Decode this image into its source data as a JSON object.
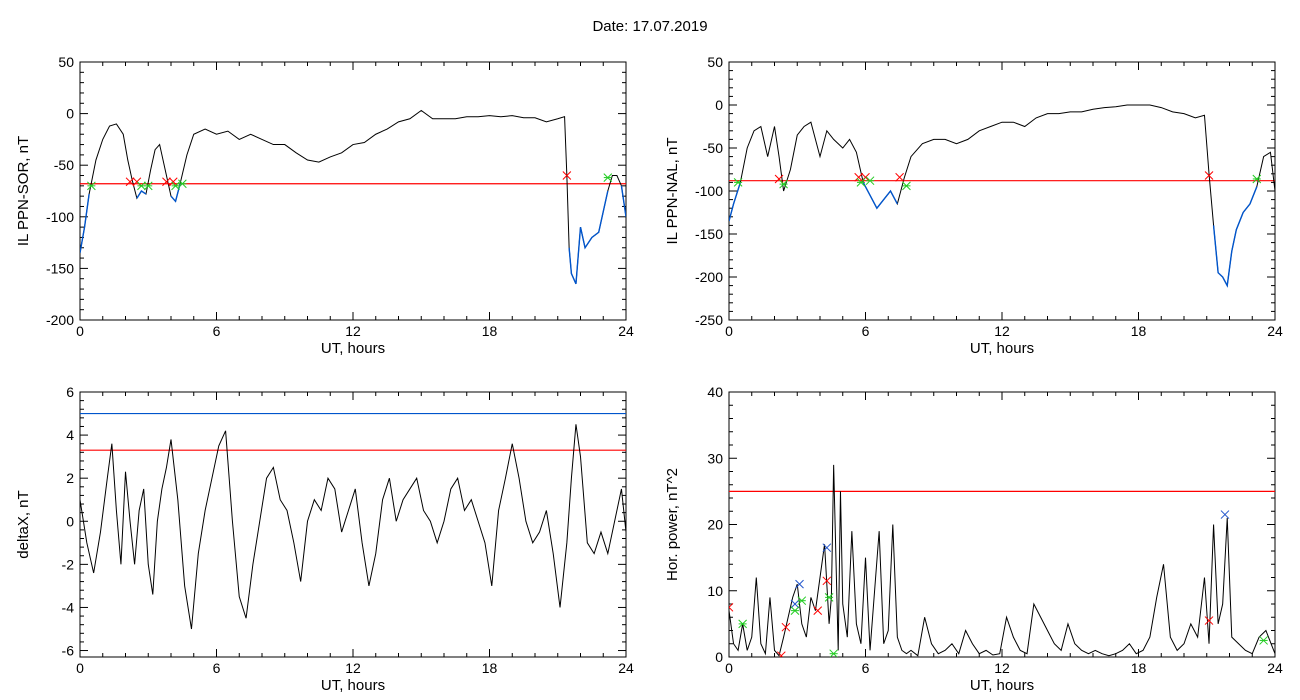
{
  "figure": {
    "title": "Date:  17.07.2019"
  },
  "chart_data": [
    {
      "id": "ppn-sor",
      "type": "line",
      "xlabel": "UT, hours",
      "ylabel": "IL PPN-SOR, nT",
      "xlim": [
        0,
        24
      ],
      "ylim": [
        -200,
        50
      ],
      "xticks": [
        0,
        6,
        12,
        18,
        24
      ],
      "yticks": [
        -200,
        -150,
        -100,
        -50,
        0,
        50
      ],
      "threshold": {
        "value": -68,
        "color": "#ff0000"
      },
      "line_color": "#000000",
      "highlight_color": "#0055cc",
      "series": [
        {
          "x": [
            0,
            0.2,
            0.4,
            0.7,
            1.0,
            1.3,
            1.6,
            1.9,
            2.1,
            2.3,
            2.5,
            2.7,
            2.9,
            3.1,
            3.3,
            3.5,
            3.8,
            4.0,
            4.2,
            4.4,
            4.7,
            5.0,
            5.5,
            6.0,
            6.5,
            7.0,
            7.5,
            8.0,
            8.5,
            9.0,
            9.5,
            10.0,
            10.5,
            11.0,
            11.5,
            12.0,
            12.5,
            13.0,
            13.5,
            14.0,
            14.5,
            15.0,
            15.5,
            16.0,
            16.5,
            17.0,
            17.5,
            18.0,
            18.5,
            19.0,
            19.5,
            20.0,
            20.5,
            21.0,
            21.3,
            21.4,
            21.5,
            21.6,
            21.8,
            22.0,
            22.2,
            22.5,
            22.8,
            23.0,
            23.2,
            23.4,
            23.6,
            23.8,
            24.0
          ],
          "y": [
            -135,
            -110,
            -78,
            -45,
            -25,
            -12,
            -10,
            -20,
            -45,
            -65,
            -82,
            -75,
            -78,
            -55,
            -35,
            -30,
            -60,
            -80,
            -85,
            -68,
            -40,
            -20,
            -15,
            -20,
            -17,
            -25,
            -20,
            -25,
            -30,
            -30,
            -38,
            -45,
            -47,
            -42,
            -38,
            -30,
            -28,
            -20,
            -15,
            -8,
            -5,
            3,
            -5,
            -5,
            -5,
            -3,
            -3,
            -2,
            -3,
            -2,
            -4,
            -4,
            -8,
            -5,
            -3,
            -60,
            -130,
            -155,
            -165,
            -110,
            -130,
            -120,
            -115,
            -95,
            -75,
            -60,
            -60,
            -70,
            -100
          ]
        }
      ],
      "markers_red": [
        {
          "x": 2.2,
          "y": -66
        },
        {
          "x": 2.5,
          "y": -66
        },
        {
          "x": 3.8,
          "y": -66
        },
        {
          "x": 4.1,
          "y": -66
        },
        {
          "x": 21.4,
          "y": -60
        }
      ],
      "markers_green": [
        {
          "x": 0.5,
          "y": -70
        },
        {
          "x": 2.7,
          "y": -70
        },
        {
          "x": 3.0,
          "y": -70
        },
        {
          "x": 4.2,
          "y": -70
        },
        {
          "x": 4.5,
          "y": -68
        },
        {
          "x": 23.2,
          "y": -62
        }
      ]
    },
    {
      "id": "ppn-nal",
      "type": "line",
      "xlabel": "UT, hours",
      "ylabel": "IL PPN-NAL, nT",
      "xlim": [
        0,
        24
      ],
      "ylim": [
        -250,
        50
      ],
      "xticks": [
        0,
        6,
        12,
        18,
        24
      ],
      "yticks": [
        -250,
        -200,
        -150,
        -100,
        -50,
        0,
        50
      ],
      "threshold": {
        "value": -88,
        "color": "#ff0000"
      },
      "line_color": "#000000",
      "highlight_color": "#0055cc",
      "series": [
        {
          "x": [
            0,
            0.2,
            0.5,
            0.8,
            1.1,
            1.4,
            1.7,
            2.0,
            2.2,
            2.4,
            2.7,
            3.0,
            3.3,
            3.6,
            4.0,
            4.3,
            4.6,
            5.0,
            5.3,
            5.6,
            5.9,
            6.2,
            6.5,
            6.8,
            7.1,
            7.4,
            7.7,
            8.0,
            8.5,
            9.0,
            9.5,
            10.0,
            10.5,
            11.0,
            11.5,
            12.0,
            12.5,
            13.0,
            13.5,
            14.0,
            14.5,
            15.0,
            15.5,
            16.0,
            16.5,
            17.0,
            17.5,
            18.0,
            18.5,
            19.0,
            19.5,
            20.0,
            20.5,
            20.9,
            21.1,
            21.3,
            21.5,
            21.7,
            21.9,
            22.1,
            22.3,
            22.6,
            22.9,
            23.2,
            23.5,
            23.8,
            24.0
          ],
          "y": [
            -135,
            -115,
            -90,
            -50,
            -30,
            -25,
            -60,
            -25,
            -60,
            -100,
            -75,
            -35,
            -25,
            -20,
            -60,
            -30,
            -40,
            -50,
            -40,
            -55,
            -90,
            -105,
            -120,
            -110,
            -100,
            -115,
            -85,
            -60,
            -45,
            -40,
            -40,
            -45,
            -40,
            -30,
            -25,
            -20,
            -20,
            -25,
            -15,
            -10,
            -10,
            -8,
            -8,
            -5,
            -3,
            -2,
            0,
            0,
            0,
            -3,
            -8,
            -10,
            -15,
            -12,
            -80,
            -140,
            -195,
            -200,
            -210,
            -170,
            -145,
            -125,
            -115,
            -95,
            -60,
            -55,
            -100
          ]
        }
      ],
      "markers_red": [
        {
          "x": 2.2,
          "y": -86
        },
        {
          "x": 5.7,
          "y": -84
        },
        {
          "x": 6.0,
          "y": -84
        },
        {
          "x": 7.5,
          "y": -84
        },
        {
          "x": 21.1,
          "y": -82
        }
      ],
      "markers_green": [
        {
          "x": 0.4,
          "y": -90
        },
        {
          "x": 2.4,
          "y": -92
        },
        {
          "x": 5.8,
          "y": -90
        },
        {
          "x": 6.2,
          "y": -88
        },
        {
          "x": 7.8,
          "y": -94
        },
        {
          "x": 23.2,
          "y": -86
        }
      ]
    },
    {
      "id": "deltax",
      "type": "line",
      "xlabel": "UT, hours",
      "ylabel": "deltaX, nT",
      "xlim": [
        0,
        24
      ],
      "ylim": [
        -6.3,
        6
      ],
      "xticks": [
        0,
        6,
        12,
        18,
        24
      ],
      "yticks": [
        -6,
        -4,
        -2,
        0,
        2,
        4,
        6
      ],
      "threshold": {
        "value": 3.3,
        "color": "#ff0000"
      },
      "threshold2": {
        "value": 5.0,
        "color": "#0055cc"
      },
      "line_color": "#000000",
      "series": [
        {
          "x": [
            0,
            0.3,
            0.6,
            0.9,
            1.2,
            1.4,
            1.6,
            1.8,
            2.0,
            2.2,
            2.4,
            2.6,
            2.8,
            3.0,
            3.2,
            3.4,
            3.6,
            3.8,
            4.0,
            4.3,
            4.6,
            4.9,
            5.2,
            5.5,
            5.8,
            6.1,
            6.4,
            6.7,
            7.0,
            7.3,
            7.6,
            7.9,
            8.2,
            8.5,
            8.8,
            9.1,
            9.4,
            9.7,
            10.0,
            10.3,
            10.6,
            10.9,
            11.2,
            11.5,
            11.8,
            12.1,
            12.4,
            12.7,
            13.0,
            13.3,
            13.6,
            13.9,
            14.2,
            14.5,
            14.8,
            15.1,
            15.4,
            15.7,
            16.0,
            16.3,
            16.6,
            16.9,
            17.2,
            17.5,
            17.8,
            18.1,
            18.4,
            18.7,
            19.0,
            19.3,
            19.6,
            19.9,
            20.2,
            20.5,
            20.8,
            21.1,
            21.4,
            21.6,
            21.8,
            22.0,
            22.3,
            22.6,
            22.9,
            23.2,
            23.5,
            23.8,
            24.0
          ],
          "y": [
            1.0,
            -1.0,
            -2.4,
            -0.5,
            2.0,
            3.6,
            0.5,
            -2.0,
            2.3,
            0.0,
            -2.0,
            0.5,
            1.5,
            -2.0,
            -3.4,
            0.0,
            1.5,
            2.5,
            3.8,
            1.0,
            -3.0,
            -5.0,
            -1.5,
            0.5,
            2.0,
            3.5,
            4.2,
            0.0,
            -3.5,
            -4.5,
            -2.0,
            0.0,
            2.0,
            2.5,
            1.0,
            0.5,
            -1.0,
            -2.8,
            0.0,
            1.0,
            0.5,
            2.0,
            1.5,
            -0.5,
            0.5,
            1.5,
            -1.0,
            -3.0,
            -1.5,
            1.0,
            2.0,
            0.0,
            1.0,
            1.5,
            2.0,
            0.5,
            0.0,
            -1.0,
            0.0,
            1.5,
            2.0,
            0.5,
            1.0,
            0.0,
            -1.0,
            -3.0,
            0.5,
            2.0,
            3.6,
            2.0,
            0.0,
            -1.0,
            -0.5,
            0.5,
            -1.5,
            -4.0,
            -1.0,
            2.0,
            4.5,
            3.0,
            -1.0,
            -1.5,
            -0.5,
            -1.5,
            0.0,
            1.5,
            -0.5
          ]
        }
      ]
    },
    {
      "id": "hor-power",
      "type": "line",
      "xlabel": "UT, hours",
      "ylabel": "Hor. power, nT^2",
      "xlim": [
        0,
        24
      ],
      "ylim": [
        0,
        40
      ],
      "xticks": [
        0,
        6,
        12,
        18,
        24
      ],
      "yticks": [
        0,
        10,
        20,
        30,
        40
      ],
      "threshold": {
        "value": 25,
        "color": "#ff0000"
      },
      "line_color": "#000000",
      "series": [
        {
          "x": [
            0,
            0.2,
            0.4,
            0.6,
            0.8,
            1.0,
            1.2,
            1.4,
            1.6,
            1.8,
            2.0,
            2.2,
            2.4,
            2.6,
            2.8,
            3.0,
            3.2,
            3.4,
            3.6,
            3.8,
            4.0,
            4.2,
            4.4,
            4.5,
            4.6,
            4.7,
            4.8,
            4.9,
            5.0,
            5.2,
            5.4,
            5.6,
            5.8,
            6.0,
            6.2,
            6.4,
            6.6,
            6.8,
            7.0,
            7.2,
            7.4,
            7.6,
            7.8,
            8.0,
            8.3,
            8.6,
            8.9,
            9.2,
            9.5,
            9.8,
            10.1,
            10.4,
            10.7,
            11.0,
            11.3,
            11.6,
            11.9,
            12.2,
            12.5,
            12.8,
            13.1,
            13.4,
            13.7,
            14.0,
            14.3,
            14.6,
            14.9,
            15.2,
            15.5,
            15.8,
            16.1,
            16.4,
            16.7,
            17.0,
            17.3,
            17.6,
            17.9,
            18.2,
            18.5,
            18.8,
            19.1,
            19.4,
            19.7,
            20.0,
            20.3,
            20.6,
            20.9,
            21.1,
            21.3,
            21.5,
            21.7,
            21.9,
            22.1,
            22.4,
            22.7,
            23.0,
            23.3,
            23.6,
            24.0
          ],
          "y": [
            7.0,
            2.0,
            1.0,
            5.0,
            1.0,
            3.0,
            12.0,
            2.0,
            0.5,
            9.0,
            1.0,
            0.2,
            3.0,
            6.0,
            9.0,
            11.0,
            5.0,
            3.0,
            9.0,
            7.0,
            12.0,
            17.0,
            5.0,
            9.0,
            29.0,
            15.0,
            1.0,
            25.0,
            8.0,
            3.0,
            19.0,
            5.0,
            2.0,
            15.0,
            1.0,
            10.0,
            19.0,
            2.0,
            4.0,
            20.0,
            3.0,
            1.0,
            0.5,
            1.0,
            0.2,
            6.0,
            2.0,
            0.5,
            1.0,
            2.0,
            0.5,
            4.0,
            2.0,
            0.5,
            1.0,
            0.3,
            0.5,
            6.0,
            3.0,
            1.0,
            0.5,
            8.0,
            6.0,
            4.0,
            2.0,
            1.0,
            5.0,
            2.0,
            1.0,
            0.5,
            1.0,
            0.5,
            0.2,
            0.5,
            1.0,
            2.0,
            0.5,
            1.0,
            3.0,
            9.0,
            14.0,
            3.0,
            1.0,
            2.0,
            5.0,
            3.0,
            12.0,
            2.0,
            20.0,
            5.0,
            8.0,
            21.0,
            3.0,
            2.0,
            1.0,
            0.5,
            3.0,
            4.0,
            0.5
          ]
        }
      ],
      "markers_red": [
        {
          "x": 0.0,
          "y": 7.5
        },
        {
          "x": 2.3,
          "y": 0.2
        },
        {
          "x": 2.5,
          "y": 4.5
        },
        {
          "x": 3.9,
          "y": 7.0
        },
        {
          "x": 4.3,
          "y": 11.5
        },
        {
          "x": 21.1,
          "y": 5.5
        }
      ],
      "markers_green": [
        {
          "x": 0.6,
          "y": 5.0
        },
        {
          "x": 2.9,
          "y": 7.0
        },
        {
          "x": 3.2,
          "y": 8.5
        },
        {
          "x": 4.4,
          "y": 9.0
        },
        {
          "x": 4.6,
          "y": 0.5
        },
        {
          "x": 23.5,
          "y": 2.5
        }
      ],
      "markers_blue": [
        {
          "x": 2.9,
          "y": 8.0
        },
        {
          "x": 3.1,
          "y": 11.0
        },
        {
          "x": 4.3,
          "y": 16.5
        },
        {
          "x": 21.8,
          "y": 21.5
        }
      ]
    }
  ]
}
